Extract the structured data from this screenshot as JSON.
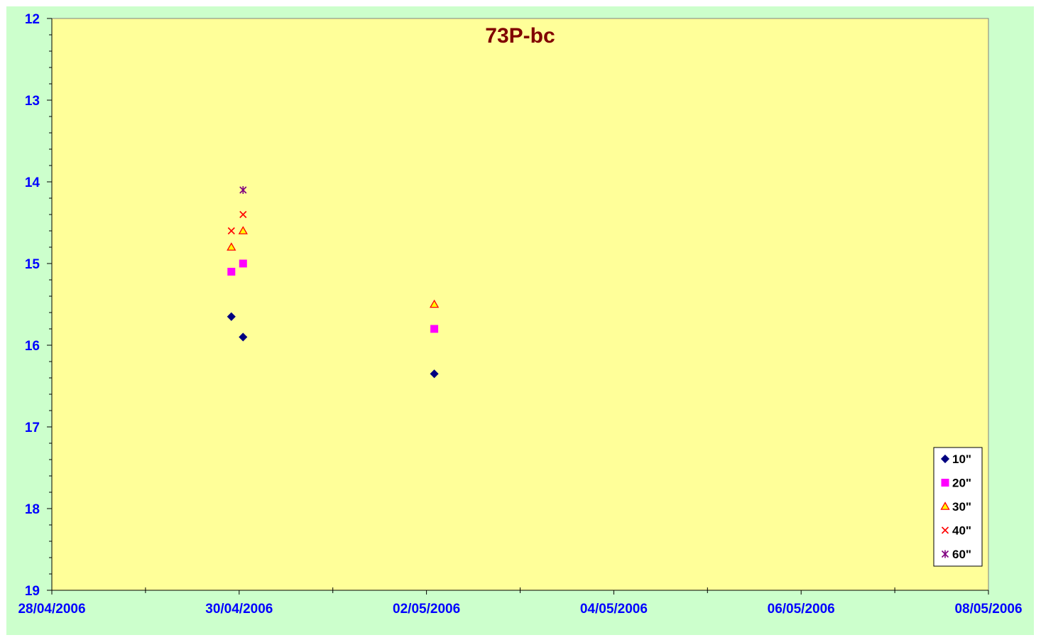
{
  "chart_data": {
    "type": "scatter",
    "title": "73P-bc",
    "xlabel": "",
    "ylabel": "",
    "x_axis": {
      "type": "date",
      "min": "2006-04-28",
      "max": "2006-05-08",
      "major_ticks": [
        "2006-04-28",
        "2006-04-30",
        "2006-05-02",
        "2006-05-04",
        "2006-05-06",
        "2006-05-08"
      ],
      "tick_labels": [
        "28/04/2006",
        "30/04/2006",
        "02/05/2006",
        "04/05/2006",
        "06/05/2006",
        "08/05/2006"
      ],
      "minor_tick_step_days": 1
    },
    "y_axis": {
      "min": 12,
      "max": 19,
      "reversed": true,
      "major_step": 1,
      "minor_step": 0.2,
      "tick_labels": [
        "12",
        "13",
        "14",
        "15",
        "16",
        "17",
        "18",
        "19"
      ]
    },
    "grid": false,
    "legend_position": "bottom-right",
    "series": [
      {
        "name": "10\"",
        "marker": "diamond",
        "color": "#000080",
        "points": [
          {
            "x": "2006-04-29 22:00",
            "y": 15.65
          },
          {
            "x": "2006-04-30 01:00",
            "y": 15.9
          },
          {
            "x": "2006-05-02 02:00",
            "y": 16.35
          }
        ]
      },
      {
        "name": "20\"",
        "marker": "square",
        "color": "#ff00ff",
        "points": [
          {
            "x": "2006-04-29 22:00",
            "y": 15.1
          },
          {
            "x": "2006-04-30 01:00",
            "y": 15.0
          },
          {
            "x": "2006-05-02 02:00",
            "y": 15.8
          }
        ]
      },
      {
        "name": "30\"",
        "marker": "triangle",
        "color": "#ffff00",
        "edge_color": "#ff0000",
        "points": [
          {
            "x": "2006-04-29 22:00",
            "y": 14.8
          },
          {
            "x": "2006-04-30 01:00",
            "y": 14.6
          },
          {
            "x": "2006-05-02 02:00",
            "y": 15.5
          }
        ]
      },
      {
        "name": "40\"",
        "marker": "x",
        "color": "#ff0000",
        "points": [
          {
            "x": "2006-04-29 22:00",
            "y": 14.6
          },
          {
            "x": "2006-04-30 01:00",
            "y": 14.4
          }
        ]
      },
      {
        "name": "60\"",
        "marker": "star",
        "color": "#800080",
        "points": [
          {
            "x": "2006-04-30 01:00",
            "y": 14.1
          }
        ]
      }
    ]
  },
  "colors": {
    "outer_background": "#ccffcc",
    "plot_background": "#ffff99",
    "axis_label": "#0000ff",
    "title": "#800000"
  }
}
